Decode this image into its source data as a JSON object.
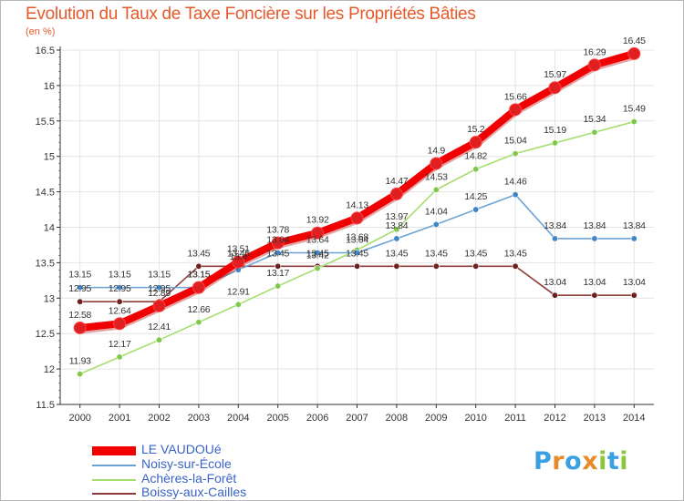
{
  "chart_data": {
    "type": "line",
    "title": "Evolution du Taux de Taxe Foncière sur les Propriétés Bâties",
    "subtitle": "(en %)",
    "xlabel": "",
    "ylabel": "",
    "x": [
      "2000",
      "2001",
      "2002",
      "2003",
      "2004",
      "2005",
      "2006",
      "2007",
      "2008",
      "2009",
      "2010",
      "2011",
      "2012",
      "2013",
      "2014"
    ],
    "yticks": [
      "11.5",
      "12",
      "12.5",
      "13",
      "13.5",
      "14",
      "14.5",
      "15",
      "15.5",
      "16",
      "16.5"
    ],
    "ylim": [
      11.5,
      16.5
    ],
    "grid": true,
    "legend_position": "bottom-left",
    "series": [
      {
        "name": "LE VAUDOUé",
        "color": "#f00000",
        "marker_color": "#e02020",
        "values": [
          12.58,
          12.64,
          12.89,
          13.15,
          13.51,
          13.78,
          13.92,
          14.13,
          14.47,
          14.9,
          15.2,
          15.66,
          15.97,
          16.29,
          16.45
        ],
        "labels": [
          "12.58",
          "12.64",
          "12.89",
          "13.15",
          "13.51",
          "13.78",
          "13.92",
          "14.13",
          "14.47",
          "14.9",
          "15.2",
          "15.66",
          "15.97",
          "16.29",
          "16.45"
        ]
      },
      {
        "name": "Noisy-sur-École",
        "color": "#6ba3d6",
        "marker_color": "#3f85c8",
        "values": [
          13.15,
          13.15,
          13.15,
          13.15,
          13.4,
          13.64,
          13.64,
          13.64,
          13.84,
          14.04,
          14.25,
          14.46,
          13.84,
          13.84,
          13.84
        ],
        "labels": [
          "13.15",
          "13.15",
          "13.15",
          "13.15",
          "13.4",
          "13.64",
          "13.64",
          "13.64",
          "13.84",
          "14.04",
          "14.25",
          "14.46",
          "13.84",
          "13.84",
          "13.84"
        ]
      },
      {
        "name": "Achères-la-Forêt",
        "color": "#a6df6f",
        "marker_color": "#7ec94a",
        "values": [
          11.93,
          12.17,
          12.41,
          12.66,
          12.91,
          13.17,
          13.42,
          13.68,
          13.97,
          14.53,
          14.82,
          15.04,
          15.19,
          15.34,
          15.49
        ],
        "labels": [
          "11.93",
          "12.17",
          "12.41",
          "12.66",
          "12.91",
          "13.17",
          "13.42",
          "13.68",
          "13.97",
          "14.53",
          "14.82",
          "15.04",
          "15.19",
          "15.34",
          "15.49"
        ]
      },
      {
        "name": "Boissy-aux-Cailles",
        "color": "#8e3b3b",
        "marker_color": "#6e1f1f",
        "values": [
          12.95,
          12.95,
          12.95,
          13.45,
          13.45,
          13.45,
          13.45,
          13.45,
          13.45,
          13.45,
          13.45,
          13.45,
          13.04,
          13.04,
          13.04
        ],
        "labels": [
          "12.95",
          "12.95",
          "12.95",
          "13.45",
          "13.45",
          "13.45",
          "13.45",
          "13.45",
          "13.45",
          "13.45",
          "13.45",
          "13.45",
          "13.04",
          "13.04",
          "13.04"
        ]
      }
    ]
  },
  "logo": {
    "text": "Proxiti",
    "colors": [
      "#3aa0e0",
      "#e68a2a",
      "#3aa0e0",
      "#e68a2a",
      "#8cc63f",
      "#3aa0e0",
      "#8cc63f"
    ]
  },
  "style": {
    "accent": "#e55a2b",
    "grid": "#e4e4e4",
    "axis": "#333333",
    "tick_text": "#333333",
    "legend_text": "#3a62c8"
  }
}
